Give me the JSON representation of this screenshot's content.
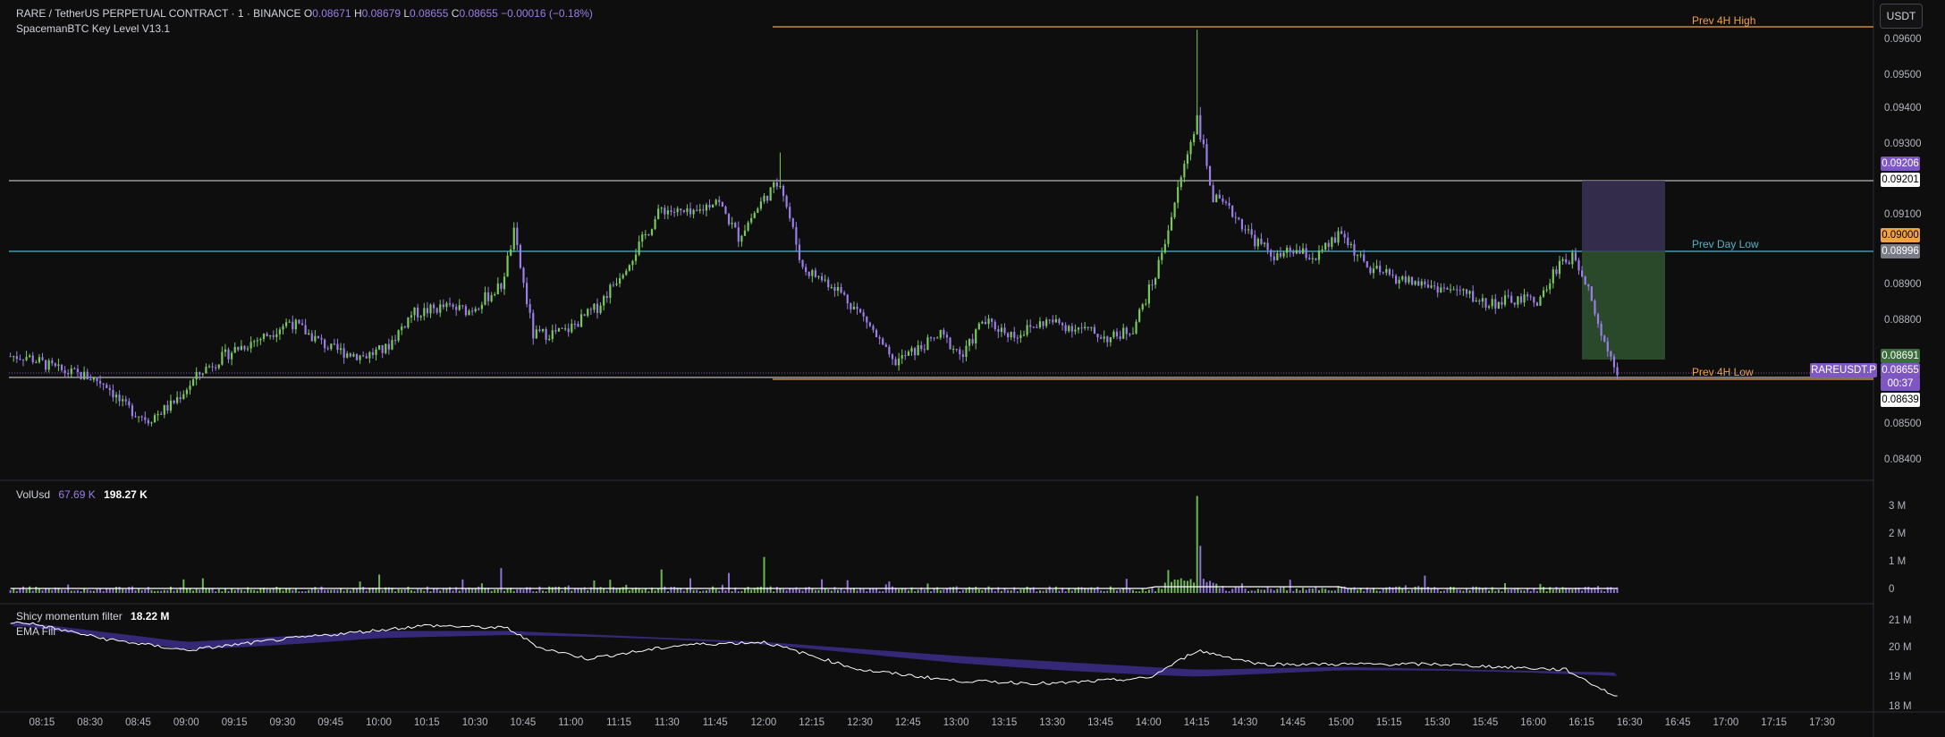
{
  "header": {
    "symbol_line": "RARE / TetherUS PERPETUAL CONTRACT · 1 · BINANCE",
    "o_label": "O",
    "o": "0.08671",
    "h_label": "H",
    "h": "0.08679",
    "l_label": "L",
    "l": "0.08655",
    "c_label": "C",
    "c": "0.08655",
    "change": "−0.00016 (−0.18%)",
    "indicator": "SpacemanBTC Key Level V13.1"
  },
  "currency_button": "USDT",
  "levels": {
    "prev_4h_high": "Prev 4H High",
    "prev_day_low": "Prev Day Low",
    "prev_4h_low": "Prev 4H Low"
  },
  "price_axis": [
    "0.09600",
    "0.09500",
    "0.09400",
    "0.09300",
    "0.09100",
    "0.08900",
    "0.08800",
    "0.08500",
    "0.08400"
  ],
  "price_tags": {
    "t1": "0.09206",
    "t2": "0.09201",
    "t3": "0.09000",
    "t4": "0.08996",
    "t5": "0.08691",
    "t6": "0.08655",
    "countdown": "00:37",
    "t7": "0.08639",
    "symbol_tag": "RAREUSDT.P"
  },
  "volume": {
    "title": "VolUsd",
    "v1": "67.69 K",
    "v2": "198.27 K",
    "axis": [
      "3 M",
      "2 M",
      "1 M",
      "0"
    ]
  },
  "momentum": {
    "title": "Shicy momentum filter",
    "value": "18.22 M",
    "sub": "EMA Fill",
    "axis": [
      "21 M",
      "20 M",
      "19 M",
      "18 M"
    ]
  },
  "time_axis": [
    "08:15",
    "08:30",
    "08:45",
    "09:00",
    "09:15",
    "09:30",
    "09:45",
    "10:00",
    "10:15",
    "10:30",
    "10:45",
    "11:00",
    "11:15",
    "11:30",
    "11:45",
    "12:00",
    "12:15",
    "12:30",
    "12:45",
    "13:00",
    "13:15",
    "13:30",
    "13:45",
    "14:00",
    "14:15",
    "14:30",
    "14:45",
    "15:00",
    "15:15",
    "15:30",
    "15:45",
    "16:00",
    "16:15",
    "16:30",
    "16:45",
    "17:00",
    "17:15",
    "17:30"
  ],
  "colors": {
    "up": "#79c95b",
    "down": "#9b7ee8",
    "orange": "#f0a143",
    "cyan": "#4fb3c7",
    "accent_purple": "#7e57c2",
    "green_zone": "#2e4f2e"
  },
  "chart_data": {
    "type": "candlestick",
    "series_anchors": [
      [
        "08:10",
        0.087
      ],
      [
        "08:20",
        0.0866
      ],
      [
        "08:30",
        0.0864
      ],
      [
        "08:35",
        0.0862
      ],
      [
        "08:40",
        0.0856
      ],
      [
        "08:48",
        0.0852
      ],
      [
        "08:55",
        0.0856
      ],
      [
        "09:05",
        0.0866
      ],
      [
        "09:15",
        0.0872
      ],
      [
        "09:25",
        0.0876
      ],
      [
        "09:32",
        0.088
      ],
      [
        "09:45",
        0.0872
      ],
      [
        "09:55",
        0.087
      ],
      [
        "10:02",
        0.0872
      ],
      [
        "10:10",
        0.0882
      ],
      [
        "10:20",
        0.0884
      ],
      [
        "10:28",
        0.0883
      ],
      [
        "10:38",
        0.089
      ],
      [
        "10:42",
        0.0905
      ],
      [
        "10:48",
        0.0876
      ],
      [
        "10:58",
        0.0877
      ],
      [
        "11:08",
        0.0884
      ],
      [
        "11:20",
        0.09
      ],
      [
        "11:28",
        0.0912
      ],
      [
        "11:38",
        0.091
      ],
      [
        "11:45",
        0.0915
      ],
      [
        "11:52",
        0.0904
      ],
      [
        "12:00",
        0.0915
      ],
      [
        "12:05",
        0.092
      ],
      [
        "12:12",
        0.0895
      ],
      [
        "12:22",
        0.089
      ],
      [
        "12:32",
        0.088
      ],
      [
        "12:40",
        0.0868
      ],
      [
        "12:48",
        0.0872
      ],
      [
        "12:55",
        0.0876
      ],
      [
        "13:02",
        0.087
      ],
      [
        "13:08",
        0.088
      ],
      [
        "13:18",
        0.0876
      ],
      [
        "13:28",
        0.088
      ],
      [
        "13:38",
        0.0878
      ],
      [
        "13:48",
        0.0875
      ],
      [
        "13:55",
        0.0878
      ],
      [
        "14:02",
        0.0893
      ],
      [
        "14:07",
        0.091
      ],
      [
        "14:12",
        0.0928
      ],
      [
        "14:15",
        0.0938
      ],
      [
        "14:20",
        0.0915
      ],
      [
        "14:27",
        0.091
      ],
      [
        "14:33",
        0.0903
      ],
      [
        "14:40",
        0.0898
      ],
      [
        "14:45",
        0.09
      ],
      [
        "14:52",
        0.0898
      ],
      [
        "15:00",
        0.0905
      ],
      [
        "15:08",
        0.0895
      ],
      [
        "15:18",
        0.0892
      ],
      [
        "15:28",
        0.089
      ],
      [
        "15:38",
        0.0888
      ],
      [
        "15:45",
        0.0885
      ],
      [
        "15:55",
        0.0886
      ],
      [
        "16:02",
        0.0886
      ],
      [
        "16:08",
        0.0897
      ],
      [
        "16:13",
        0.0898
      ],
      [
        "16:17",
        0.089
      ],
      [
        "16:21",
        0.0876
      ],
      [
        "16:26",
        0.0866
      ]
    ],
    "volume_usd_anchors": [
      [
        "08:10",
        200000
      ],
      [
        "10:38",
        900000
      ],
      [
        "12:00",
        1300000
      ],
      [
        "14:15",
        3500000
      ],
      [
        "16:26",
        198270
      ]
    ],
    "momentum_anchors": [
      [
        "08:10",
        20.9
      ],
      [
        "08:35",
        20.3
      ],
      [
        "09:00",
        19.9
      ],
      [
        "09:30",
        20.3
      ],
      [
        "10:15",
        20.8
      ],
      [
        "10:40",
        20.7
      ],
      [
        "10:50",
        20.0
      ],
      [
        "11:05",
        19.6
      ],
      [
        "11:35",
        20.1
      ],
      [
        "12:00",
        20.2
      ],
      [
        "12:30",
        19.2
      ],
      [
        "13:00",
        18.8
      ],
      [
        "13:30",
        18.7
      ],
      [
        "14:00",
        18.9
      ],
      [
        "14:15",
        19.9
      ],
      [
        "14:35",
        19.4
      ],
      [
        "15:30",
        19.4
      ],
      [
        "16:10",
        19.2
      ],
      [
        "16:26",
        18.2
      ]
    ],
    "momentum_ema_anchors": [
      [
        "08:10",
        20.9
      ],
      [
        "09:00",
        20.2
      ],
      [
        "10:00",
        20.6
      ],
      [
        "10:40",
        20.6
      ],
      [
        "12:00",
        20.2
      ],
      [
        "13:00",
        19.7
      ],
      [
        "14:15",
        19.2
      ],
      [
        "15:00",
        19.3
      ],
      [
        "16:26",
        19.1
      ]
    ],
    "ylim": [
      0.0835,
      0.0965
    ],
    "xlim": [
      "08:05",
      "17:40"
    ]
  }
}
